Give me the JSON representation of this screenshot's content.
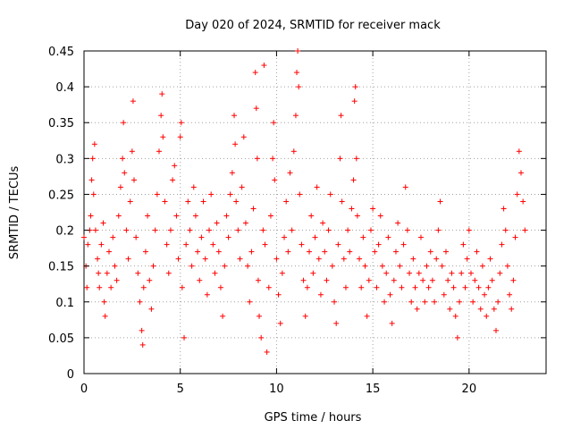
{
  "chart_data": {
    "type": "scatter",
    "title": "Day 020 of 2024, SRMTID for receiver mack",
    "xlabel": "GPS time / hours",
    "ylabel": "SRMTID / TECUs",
    "xlim": [
      0,
      24
    ],
    "ylim": [
      0,
      0.45
    ],
    "x_ticks": [
      0,
      5,
      10,
      15,
      20
    ],
    "x_tick_labels": [
      "0",
      "5",
      "10",
      "15",
      "20"
    ],
    "y_ticks": [
      0,
      0.05,
      0.1,
      0.15,
      0.2,
      0.25,
      0.3,
      0.35,
      0.4,
      0.45
    ],
    "y_tick_labels": [
      "0",
      "0.05",
      "0.1",
      "0.15",
      "0.2",
      "0.25",
      "0.3",
      "0.35",
      "0.4",
      "0.45"
    ],
    "grid": true,
    "marker": "+",
    "color": "#ff0000",
    "series": [
      {
        "name": "SRMTID",
        "points": [
          [
            0.0,
            0.19
          ],
          [
            0.1,
            0.15
          ],
          [
            0.15,
            0.12
          ],
          [
            0.2,
            0.18
          ],
          [
            0.3,
            0.2
          ],
          [
            0.35,
            0.22
          ],
          [
            0.4,
            0.27
          ],
          [
            0.45,
            0.3
          ],
          [
            0.5,
            0.25
          ],
          [
            0.55,
            0.32
          ],
          [
            0.6,
            0.2
          ],
          [
            0.7,
            0.16
          ],
          [
            0.75,
            0.14
          ],
          [
            0.8,
            0.12
          ],
          [
            0.9,
            0.18
          ],
          [
            1.0,
            0.21
          ],
          [
            1.05,
            0.1
          ],
          [
            1.1,
            0.08
          ],
          [
            1.2,
            0.14
          ],
          [
            1.3,
            0.17
          ],
          [
            1.4,
            0.12
          ],
          [
            1.5,
            0.19
          ],
          [
            1.6,
            0.15
          ],
          [
            1.7,
            0.13
          ],
          [
            1.8,
            0.22
          ],
          [
            1.9,
            0.26
          ],
          [
            2.0,
            0.3
          ],
          [
            2.05,
            0.35
          ],
          [
            2.1,
            0.28
          ],
          [
            2.2,
            0.2
          ],
          [
            2.3,
            0.16
          ],
          [
            2.4,
            0.24
          ],
          [
            2.5,
            0.31
          ],
          [
            2.55,
            0.38
          ],
          [
            2.6,
            0.27
          ],
          [
            2.7,
            0.19
          ],
          [
            2.8,
            0.14
          ],
          [
            2.9,
            0.1
          ],
          [
            3.0,
            0.06
          ],
          [
            3.05,
            0.04
          ],
          [
            3.1,
            0.12
          ],
          [
            3.2,
            0.17
          ],
          [
            3.3,
            0.22
          ],
          [
            3.4,
            0.13
          ],
          [
            3.5,
            0.09
          ],
          [
            3.6,
            0.15
          ],
          [
            3.7,
            0.2
          ],
          [
            3.8,
            0.25
          ],
          [
            3.9,
            0.31
          ],
          [
            4.0,
            0.36
          ],
          [
            4.05,
            0.39
          ],
          [
            4.1,
            0.33
          ],
          [
            4.2,
            0.24
          ],
          [
            4.3,
            0.18
          ],
          [
            4.4,
            0.14
          ],
          [
            4.5,
            0.2
          ],
          [
            4.6,
            0.27
          ],
          [
            4.7,
            0.29
          ],
          [
            4.8,
            0.22
          ],
          [
            4.9,
            0.16
          ],
          [
            5.0,
            0.33
          ],
          [
            5.05,
            0.35
          ],
          [
            5.1,
            0.12
          ],
          [
            5.2,
            0.05
          ],
          [
            5.3,
            0.18
          ],
          [
            5.4,
            0.24
          ],
          [
            5.5,
            0.2
          ],
          [
            5.6,
            0.15
          ],
          [
            5.7,
            0.26
          ],
          [
            5.8,
            0.22
          ],
          [
            5.9,
            0.17
          ],
          [
            6.0,
            0.13
          ],
          [
            6.1,
            0.19
          ],
          [
            6.2,
            0.24
          ],
          [
            6.3,
            0.16
          ],
          [
            6.4,
            0.11
          ],
          [
            6.5,
            0.2
          ],
          [
            6.6,
            0.25
          ],
          [
            6.7,
            0.18
          ],
          [
            6.8,
            0.14
          ],
          [
            6.9,
            0.21
          ],
          [
            7.0,
            0.17
          ],
          [
            7.1,
            0.12
          ],
          [
            7.2,
            0.08
          ],
          [
            7.3,
            0.15
          ],
          [
            7.4,
            0.22
          ],
          [
            7.5,
            0.19
          ],
          [
            7.6,
            0.25
          ],
          [
            7.7,
            0.28
          ],
          [
            7.8,
            0.36
          ],
          [
            7.85,
            0.32
          ],
          [
            7.9,
            0.24
          ],
          [
            8.0,
            0.2
          ],
          [
            8.1,
            0.16
          ],
          [
            8.2,
            0.26
          ],
          [
            8.3,
            0.33
          ],
          [
            8.4,
            0.21
          ],
          [
            8.5,
            0.15
          ],
          [
            8.6,
            0.1
          ],
          [
            8.7,
            0.17
          ],
          [
            8.8,
            0.23
          ],
          [
            8.9,
            0.42
          ],
          [
            8.95,
            0.37
          ],
          [
            9.0,
            0.3
          ],
          [
            9.05,
            0.13
          ],
          [
            9.1,
            0.08
          ],
          [
            9.2,
            0.05
          ],
          [
            9.3,
            0.2
          ],
          [
            9.35,
            0.43
          ],
          [
            9.4,
            0.18
          ],
          [
            9.5,
            0.03
          ],
          [
            9.6,
            0.12
          ],
          [
            9.7,
            0.22
          ],
          [
            9.8,
            0.3
          ],
          [
            9.85,
            0.35
          ],
          [
            9.9,
            0.27
          ],
          [
            10.0,
            0.16
          ],
          [
            10.1,
            0.11
          ],
          [
            10.2,
            0.07
          ],
          [
            10.3,
            0.14
          ],
          [
            10.4,
            0.19
          ],
          [
            10.5,
            0.24
          ],
          [
            10.6,
            0.17
          ],
          [
            10.7,
            0.28
          ],
          [
            10.8,
            0.2
          ],
          [
            10.9,
            0.31
          ],
          [
            11.0,
            0.36
          ],
          [
            11.05,
            0.42
          ],
          [
            11.1,
            0.45
          ],
          [
            11.15,
            0.4
          ],
          [
            11.2,
            0.25
          ],
          [
            11.3,
            0.18
          ],
          [
            11.4,
            0.13
          ],
          [
            11.5,
            0.08
          ],
          [
            11.6,
            0.12
          ],
          [
            11.7,
            0.17
          ],
          [
            11.8,
            0.22
          ],
          [
            11.9,
            0.14
          ],
          [
            12.0,
            0.19
          ],
          [
            12.1,
            0.26
          ],
          [
            12.2,
            0.16
          ],
          [
            12.3,
            0.11
          ],
          [
            12.4,
            0.21
          ],
          [
            12.5,
            0.17
          ],
          [
            12.6,
            0.13
          ],
          [
            12.7,
            0.2
          ],
          [
            12.8,
            0.25
          ],
          [
            12.9,
            0.15
          ],
          [
            13.0,
            0.1
          ],
          [
            13.1,
            0.07
          ],
          [
            13.2,
            0.18
          ],
          [
            13.3,
            0.3
          ],
          [
            13.35,
            0.36
          ],
          [
            13.4,
            0.24
          ],
          [
            13.5,
            0.16
          ],
          [
            13.6,
            0.12
          ],
          [
            13.7,
            0.2
          ],
          [
            13.8,
            0.17
          ],
          [
            13.9,
            0.23
          ],
          [
            14.0,
            0.27
          ],
          [
            14.05,
            0.38
          ],
          [
            14.1,
            0.4
          ],
          [
            14.15,
            0.3
          ],
          [
            14.2,
            0.22
          ],
          [
            14.3,
            0.16
          ],
          [
            14.4,
            0.12
          ],
          [
            14.5,
            0.19
          ],
          [
            14.6,
            0.15
          ],
          [
            14.7,
            0.08
          ],
          [
            14.8,
            0.13
          ],
          [
            14.9,
            0.2
          ],
          [
            15.0,
            0.23
          ],
          [
            15.1,
            0.17
          ],
          [
            15.2,
            0.12
          ],
          [
            15.3,
            0.18
          ],
          [
            15.4,
            0.22
          ],
          [
            15.5,
            0.15
          ],
          [
            15.6,
            0.1
          ],
          [
            15.7,
            0.14
          ],
          [
            15.8,
            0.19
          ],
          [
            15.9,
            0.11
          ],
          [
            16.0,
            0.07
          ],
          [
            16.1,
            0.13
          ],
          [
            16.2,
            0.17
          ],
          [
            16.3,
            0.21
          ],
          [
            16.4,
            0.15
          ],
          [
            16.5,
            0.12
          ],
          [
            16.6,
            0.18
          ],
          [
            16.7,
            0.26
          ],
          [
            16.8,
            0.2
          ],
          [
            16.9,
            0.14
          ],
          [
            17.0,
            0.1
          ],
          [
            17.1,
            0.16
          ],
          [
            17.2,
            0.12
          ],
          [
            17.3,
            0.09
          ],
          [
            17.4,
            0.14
          ],
          [
            17.5,
            0.19
          ],
          [
            17.6,
            0.13
          ],
          [
            17.7,
            0.1
          ],
          [
            17.8,
            0.15
          ],
          [
            17.9,
            0.12
          ],
          [
            18.0,
            0.17
          ],
          [
            18.1,
            0.13
          ],
          [
            18.2,
            0.1
          ],
          [
            18.3,
            0.16
          ],
          [
            18.4,
            0.2
          ],
          [
            18.5,
            0.24
          ],
          [
            18.6,
            0.15
          ],
          [
            18.7,
            0.11
          ],
          [
            18.8,
            0.17
          ],
          [
            18.9,
            0.13
          ],
          [
            19.0,
            0.09
          ],
          [
            19.1,
            0.14
          ],
          [
            19.2,
            0.12
          ],
          [
            19.3,
            0.08
          ],
          [
            19.4,
            0.05
          ],
          [
            19.5,
            0.1
          ],
          [
            19.6,
            0.14
          ],
          [
            19.7,
            0.18
          ],
          [
            19.8,
            0.12
          ],
          [
            19.9,
            0.16
          ],
          [
            20.0,
            0.2
          ],
          [
            20.1,
            0.14
          ],
          [
            20.2,
            0.1
          ],
          [
            20.3,
            0.13
          ],
          [
            20.4,
            0.17
          ],
          [
            20.5,
            0.12
          ],
          [
            20.6,
            0.09
          ],
          [
            20.7,
            0.15
          ],
          [
            20.8,
            0.11
          ],
          [
            20.9,
            0.08
          ],
          [
            21.0,
            0.12
          ],
          [
            21.1,
            0.16
          ],
          [
            21.2,
            0.13
          ],
          [
            21.3,
            0.09
          ],
          [
            21.4,
            0.06
          ],
          [
            21.5,
            0.1
          ],
          [
            21.6,
            0.14
          ],
          [
            21.7,
            0.18
          ],
          [
            21.8,
            0.23
          ],
          [
            21.9,
            0.2
          ],
          [
            22.0,
            0.15
          ],
          [
            22.1,
            0.11
          ],
          [
            22.2,
            0.09
          ],
          [
            22.3,
            0.13
          ],
          [
            22.4,
            0.19
          ],
          [
            22.5,
            0.25
          ],
          [
            22.6,
            0.31
          ],
          [
            22.7,
            0.28
          ],
          [
            22.8,
            0.24
          ],
          [
            22.9,
            0.2
          ]
        ]
      }
    ]
  }
}
